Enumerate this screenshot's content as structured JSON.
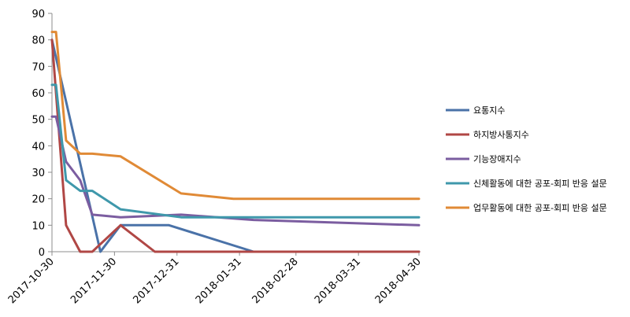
{
  "chart_data": {
    "type": "line",
    "title": "",
    "xlabel": "",
    "ylabel": "",
    "ylim": [
      0,
      90
    ],
    "yticks": [
      "0",
      "10",
      "20",
      "30",
      "40",
      "50",
      "60",
      "70",
      "80",
      "90"
    ],
    "xlim": [
      "2017-10-30",
      "2018-04-30"
    ],
    "xticks": [
      "2017-10-30",
      "2017-11-30",
      "2017-12-31",
      "2018-01-31",
      "2018-02-28",
      "2018-03-31",
      "2018-04-30"
    ],
    "grid": false,
    "legend_position": "right",
    "series": [
      {
        "name": "요통지수",
        "color": "#4a72a8",
        "points": [
          {
            "x": "2017-10-30",
            "y": 80
          },
          {
            "x": "2017-11-23",
            "y": 0
          },
          {
            "x": "2017-12-03",
            "y": 10
          },
          {
            "x": "2017-12-27",
            "y": 10
          },
          {
            "x": "2018-02-07",
            "y": 0
          },
          {
            "x": "2018-04-30",
            "y": 0
          }
        ]
      },
      {
        "name": "하지방사통지수",
        "color": "#b04745",
        "points": [
          {
            "x": "2017-10-30",
            "y": 80
          },
          {
            "x": "2017-11-06",
            "y": 10
          },
          {
            "x": "2017-11-13",
            "y": 0
          },
          {
            "x": "2017-11-19",
            "y": 0
          },
          {
            "x": "2017-12-03",
            "y": 10
          },
          {
            "x": "2017-12-20",
            "y": 0
          },
          {
            "x": "2018-04-30",
            "y": 0
          }
        ]
      },
      {
        "name": "기능장애지수",
        "color": "#7b5da0",
        "points": [
          {
            "x": "2017-10-30",
            "y": 51
          },
          {
            "x": "2017-11-01",
            "y": 51
          },
          {
            "x": "2017-11-06",
            "y": 34
          },
          {
            "x": "2017-11-13",
            "y": 27
          },
          {
            "x": "2017-11-19",
            "y": 14
          },
          {
            "x": "2017-12-03",
            "y": 13
          },
          {
            "x": "2018-01-02",
            "y": 14
          },
          {
            "x": "2018-02-07",
            "y": 12
          },
          {
            "x": "2018-04-30",
            "y": 10
          }
        ]
      },
      {
        "name": "신체활동에 대한 공포-회피 반응 설문",
        "color": "#3f98ab",
        "points": [
          {
            "x": "2017-10-30",
            "y": 63
          },
          {
            "x": "2017-11-01",
            "y": 63
          },
          {
            "x": "2017-11-06",
            "y": 27
          },
          {
            "x": "2017-11-13",
            "y": 23
          },
          {
            "x": "2017-11-19",
            "y": 23
          },
          {
            "x": "2017-12-03",
            "y": 16
          },
          {
            "x": "2018-01-02",
            "y": 13
          },
          {
            "x": "2018-04-30",
            "y": 13
          }
        ]
      },
      {
        "name": "업무활동에 대한 공포-회피 반응 설문",
        "color": "#e08a36",
        "points": [
          {
            "x": "2017-10-30",
            "y": 83
          },
          {
            "x": "2017-11-01",
            "y": 83
          },
          {
            "x": "2017-11-06",
            "y": 42
          },
          {
            "x": "2017-11-13",
            "y": 37
          },
          {
            "x": "2017-11-19",
            "y": 37
          },
          {
            "x": "2017-12-03",
            "y": 36
          },
          {
            "x": "2018-01-02",
            "y": 22
          },
          {
            "x": "2018-01-28",
            "y": 20
          },
          {
            "x": "2018-04-30",
            "y": 20
          }
        ]
      }
    ]
  }
}
